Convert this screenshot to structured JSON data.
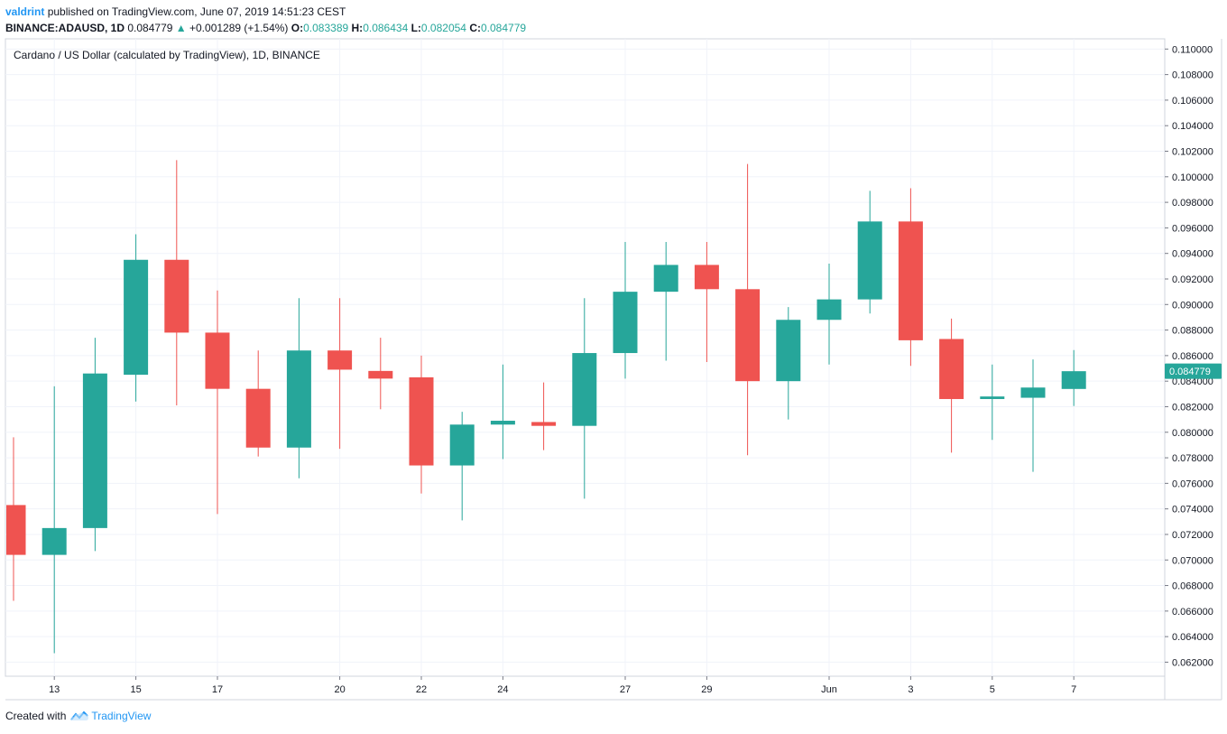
{
  "header": {
    "author": "valdrint",
    "published_text": "published on TradingView.com, June 07, 2019 14:51:23 CEST",
    "symbol": "BINANCE:ADAUSD, 1D",
    "last": "0.084779",
    "change_arrow": "▲",
    "change": "+0.001289 (+1.54%)",
    "o_label": "O:",
    "o_value": "0.083389",
    "h_label": "H:",
    "h_value": "0.086434",
    "l_label": "L:",
    "l_value": "0.082054",
    "c_label": "C:",
    "c_value": "0.084779"
  },
  "footer": {
    "created_with": "Created with",
    "brand": "TradingView",
    "logo_icon": "tradingview-cloud-icon"
  },
  "colors": {
    "up": "#26a69a",
    "down": "#ef5350",
    "grid": "#f0f3fa",
    "axis_text": "#131722",
    "last_price_bg": "#26a69a"
  },
  "chart_data": {
    "type": "candlestick",
    "title": "Cardano / US Dollar (calculated by TradingView), 1D, BINANCE",
    "ylim": [
      0.0609,
      0.1108
    ],
    "y_ticks": [
      "0.110000",
      "0.108000",
      "0.106000",
      "0.104000",
      "0.102000",
      "0.100000",
      "0.098000",
      "0.096000",
      "0.094000",
      "0.092000",
      "0.090000",
      "0.088000",
      "0.086000",
      "0.084000",
      "0.082000",
      "0.080000",
      "0.078000",
      "0.076000",
      "0.074000",
      "0.072000",
      "0.070000",
      "0.068000",
      "0.066000",
      "0.064000",
      "0.062000"
    ],
    "x_labels": [
      {
        "index": 1,
        "label": "13"
      },
      {
        "index": 3,
        "label": "15"
      },
      {
        "index": 5,
        "label": "17"
      },
      {
        "index": 8,
        "label": "20"
      },
      {
        "index": 10,
        "label": "22"
      },
      {
        "index": 12,
        "label": "24"
      },
      {
        "index": 15,
        "label": "27"
      },
      {
        "index": 17,
        "label": "29"
      },
      {
        "index": 20,
        "label": "Jun"
      },
      {
        "index": 22,
        "label": "3"
      },
      {
        "index": 24,
        "label": "5"
      },
      {
        "index": 26,
        "label": "7"
      }
    ],
    "last_price": "0.084779",
    "last_price_value": 0.084779,
    "candles": [
      {
        "o": 0.0743,
        "h": 0.0796,
        "l": 0.0668,
        "c": 0.0704
      },
      {
        "o": 0.0704,
        "h": 0.0836,
        "l": 0.0627,
        "c": 0.0725
      },
      {
        "o": 0.0725,
        "h": 0.0874,
        "l": 0.0707,
        "c": 0.0846
      },
      {
        "o": 0.0845,
        "h": 0.0955,
        "l": 0.0824,
        "c": 0.0935
      },
      {
        "o": 0.0935,
        "h": 0.1013,
        "l": 0.0821,
        "c": 0.0878
      },
      {
        "o": 0.0878,
        "h": 0.0911,
        "l": 0.0736,
        "c": 0.0834
      },
      {
        "o": 0.0834,
        "h": 0.0864,
        "l": 0.0781,
        "c": 0.0788
      },
      {
        "o": 0.0788,
        "h": 0.0905,
        "l": 0.0764,
        "c": 0.0864
      },
      {
        "o": 0.0864,
        "h": 0.0905,
        "l": 0.0787,
        "c": 0.0849
      },
      {
        "o": 0.0848,
        "h": 0.0874,
        "l": 0.0818,
        "c": 0.0842
      },
      {
        "o": 0.0843,
        "h": 0.086,
        "l": 0.0752,
        "c": 0.0774
      },
      {
        "o": 0.0774,
        "h": 0.0816,
        "l": 0.0731,
        "c": 0.0806
      },
      {
        "o": 0.0806,
        "h": 0.0853,
        "l": 0.0779,
        "c": 0.0809
      },
      {
        "o": 0.0808,
        "h": 0.0839,
        "l": 0.0786,
        "c": 0.0805
      },
      {
        "o": 0.0805,
        "h": 0.0905,
        "l": 0.0748,
        "c": 0.0862
      },
      {
        "o": 0.0862,
        "h": 0.0949,
        "l": 0.0842,
        "c": 0.091
      },
      {
        "o": 0.091,
        "h": 0.0949,
        "l": 0.0856,
        "c": 0.0931
      },
      {
        "o": 0.0931,
        "h": 0.0949,
        "l": 0.0855,
        "c": 0.0912
      },
      {
        "o": 0.0912,
        "h": 0.101,
        "l": 0.0782,
        "c": 0.084
      },
      {
        "o": 0.084,
        "h": 0.0898,
        "l": 0.081,
        "c": 0.0888
      },
      {
        "o": 0.0888,
        "h": 0.0932,
        "l": 0.0853,
        "c": 0.0904
      },
      {
        "o": 0.0904,
        "h": 0.0989,
        "l": 0.0893,
        "c": 0.0965
      },
      {
        "o": 0.0965,
        "h": 0.0991,
        "l": 0.0852,
        "c": 0.0872
      },
      {
        "o": 0.0873,
        "h": 0.0889,
        "l": 0.0784,
        "c": 0.0826
      },
      {
        "o": 0.0826,
        "h": 0.0853,
        "l": 0.0794,
        "c": 0.0828
      },
      {
        "o": 0.0827,
        "h": 0.0857,
        "l": 0.0769,
        "c": 0.0835
      },
      {
        "o": 0.083389,
        "h": 0.086434,
        "l": 0.082054,
        "c": 0.084779
      }
    ]
  }
}
